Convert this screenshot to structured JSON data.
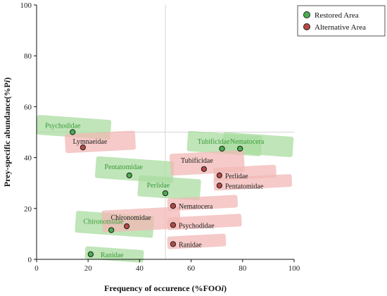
{
  "chart_data": {
    "type": "scatter",
    "xlabel": "Frequency of occurence (%FOO",
    "xlabel_italic": "i",
    "xlabel_close": ")",
    "ylabel": "Prey-specific abundance(%P",
    "ylabel_italic": "i",
    "ylabel_close": ")",
    "xlim": [
      0,
      100
    ],
    "ylim": [
      0,
      100
    ],
    "xticks": [
      0,
      20,
      40,
      60,
      80,
      100
    ],
    "yticks": [
      0,
      20,
      40,
      60,
      80,
      100
    ],
    "reference_lines": {
      "x": 50,
      "y": 50
    },
    "legend_position": "top-right",
    "series": [
      {
        "name": "Restored Area",
        "color": "#4caf50",
        "shade": "#a9dca0",
        "points": [
          {
            "label": "Psychodidae",
            "x": 14,
            "y": 50
          },
          {
            "label": "Pentatomidae",
            "x": 36,
            "y": 33
          },
          {
            "label": "Perlidae",
            "x": 50,
            "y": 26
          },
          {
            "label": "Chironomidae",
            "x": 29,
            "y": 11.5
          },
          {
            "label": "Ranidae",
            "x": 21,
            "y": 2
          },
          {
            "label": "Tubificidae",
            "x": 72,
            "y": 43.5
          },
          {
            "label": "Nematocera",
            "x": 79,
            "y": 43.5
          }
        ]
      },
      {
        "name": "Alternative Area",
        "color": "#b84a44",
        "shade": "#f2b8b6",
        "points": [
          {
            "label": "Lymnaeidae",
            "x": 18,
            "y": 44
          },
          {
            "label": "Chironomidae",
            "x": 35,
            "y": 13
          },
          {
            "label": "Tubificidae",
            "x": 65,
            "y": 35.5
          },
          {
            "label": "Perlidae",
            "x": 71,
            "y": 33
          },
          {
            "label": "Pentatomidae",
            "x": 71,
            "y": 29
          },
          {
            "label": "Nematocera",
            "x": 53,
            "y": 21
          },
          {
            "label": "Psychodidae",
            "x": 53,
            "y": 13.5
          },
          {
            "label": "Ranidae",
            "x": 53,
            "y": 6
          }
        ]
      }
    ]
  },
  "legend": {
    "items": [
      "Restored Area",
      "Alternative Area"
    ]
  }
}
